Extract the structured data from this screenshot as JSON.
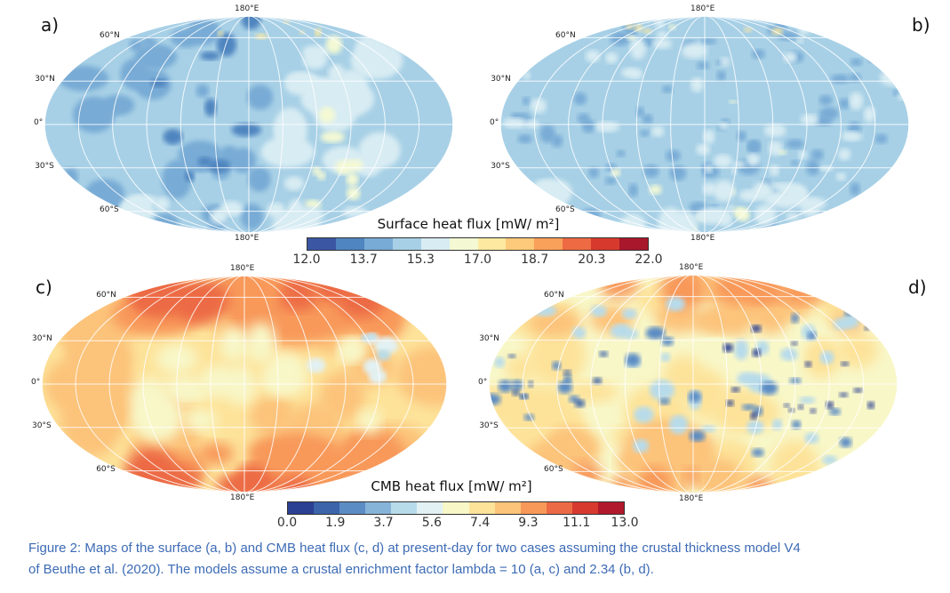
{
  "panels": [
    {
      "id": "a",
      "label": "a)",
      "type": "surface"
    },
    {
      "id": "b",
      "label": "b)",
      "type": "surface"
    },
    {
      "id": "c",
      "label": "c)",
      "type": "cmb"
    },
    {
      "id": "d",
      "label": "d)",
      "type": "cmb"
    }
  ],
  "grid_labels": {
    "top": "180°E",
    "bottom": "180°E",
    "lat_60n": "60°N",
    "lat_30n": "30°N",
    "lat_0": "0°",
    "lat_30s": "30°S",
    "lat_60s": "60°S"
  },
  "colorbar_surface": {
    "title": "Surface heat flux [mW/ m²]",
    "ticks": [
      "12.0",
      "13.7",
      "15.3",
      "17.0",
      "18.7",
      "20.3",
      "22.0"
    ],
    "colors": [
      "#3b57a3",
      "#4f85c0",
      "#78abd5",
      "#a7d0e6",
      "#d8ecf3",
      "#f4f9d4",
      "#fde9a0",
      "#fdc97b",
      "#f9a05a",
      "#ee6a43",
      "#d73a2d",
      "#a8172b"
    ]
  },
  "colorbar_cmb": {
    "title": "CMB heat flux [mW/ m²]",
    "ticks": [
      "0.0",
      "1.9",
      "3.7",
      "5.6",
      "7.4",
      "9.3",
      "11.1",
      "13.0"
    ],
    "colors": [
      "#2b3f93",
      "#3b64ab",
      "#5b8cc4",
      "#86b4d8",
      "#b8dbea",
      "#e2f1f3",
      "#f8f7c8",
      "#fde39a",
      "#fcc37a",
      "#f8995a",
      "#ec6a45",
      "#d7392e",
      "#b2182b"
    ]
  },
  "caption": {
    "line1": "Figure 2: Maps of the surface (a, b) and CMB heat flux (c, d) at present-day for two cases assuming the crustal thickness model V4",
    "line2": "of Beuthe et al. (2020). The models assume a crustal enrichment factor lambda = 10 (a, c) and 2.34 (b, d)."
  }
}
